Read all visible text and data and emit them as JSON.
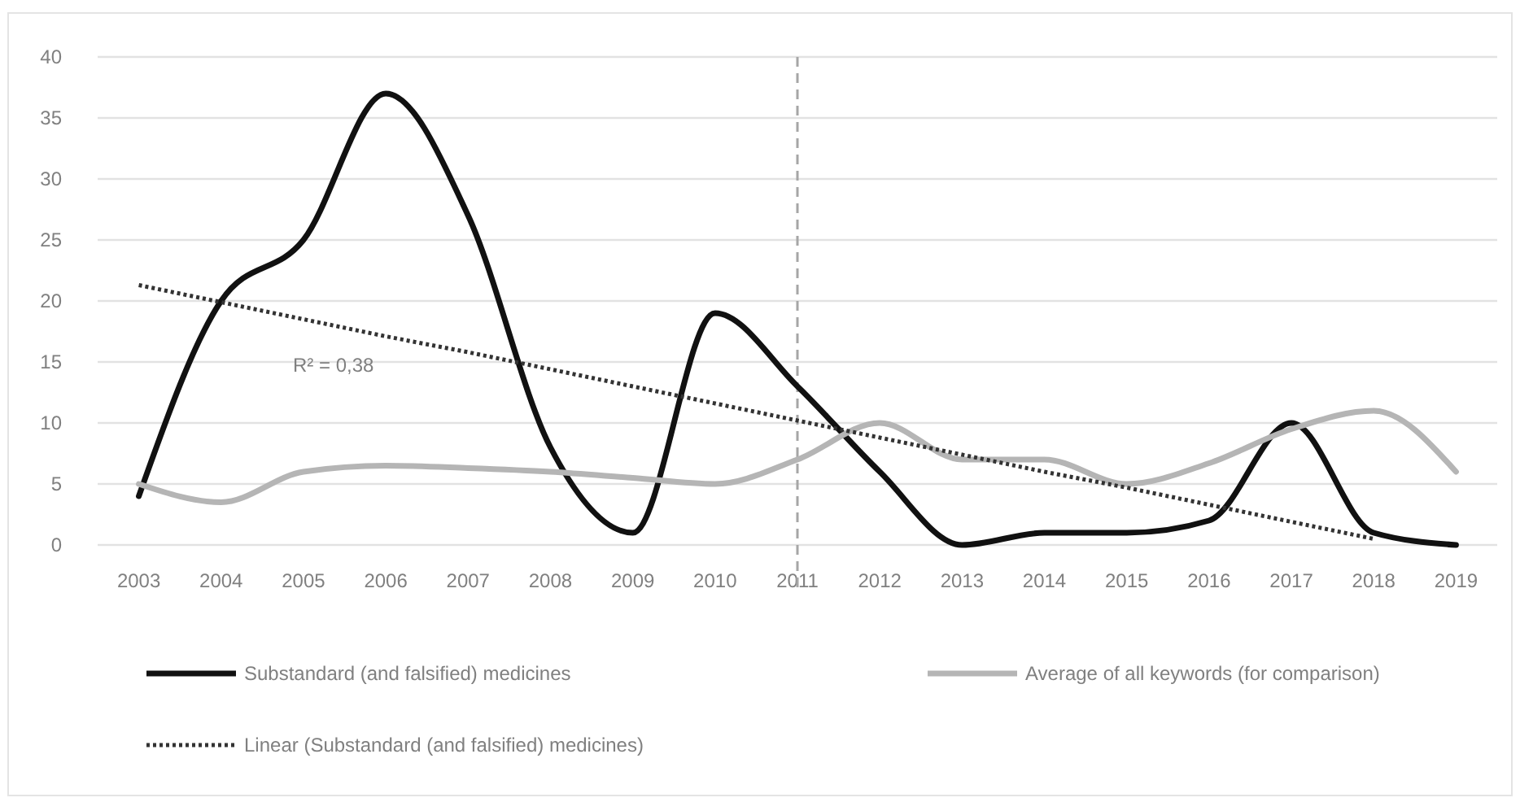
{
  "chart_data": {
    "type": "line",
    "categories": [
      "2003",
      "2004",
      "2005",
      "2006",
      "2007",
      "2008",
      "2009",
      "2010",
      "2011",
      "2012",
      "2013",
      "2014",
      "2015",
      "2016",
      "2017",
      "2018",
      "2019"
    ],
    "series": [
      {
        "name": "Substandard (and falsified) medicines",
        "color": "#111111",
        "values": [
          4,
          20,
          25,
          37,
          27,
          8,
          1,
          19,
          13,
          6,
          0,
          1,
          1,
          2,
          10,
          1,
          0
        ]
      },
      {
        "name": "Average of all keywords (for comparison)",
        "color": "#b5b5b5",
        "values": [
          5,
          3.5,
          6,
          6.5,
          6.3,
          6,
          5.5,
          5,
          7,
          10,
          7,
          7,
          5,
          6.7,
          9.5,
          11,
          6
        ]
      },
      {
        "name": "Linear (Substandard (and falsified) medicines)",
        "type": "line",
        "color": "#333333",
        "line_style": "dotted",
        "values": [
          21.3,
          19.9,
          18.5,
          17.1,
          15.8,
          14.4,
          13.0,
          11.6,
          10.2,
          8.8,
          7.4,
          6.0,
          4.7,
          3.3,
          1.9,
          0.5,
          null
        ]
      }
    ],
    "ylim": [
      0,
      40
    ],
    "yticks": [
      0,
      5,
      10,
      15,
      20,
      25,
      30,
      35,
      40
    ],
    "grid": "y",
    "legend": "bottom",
    "marker": "none",
    "line_style": "solid",
    "ref_lines": [
      {
        "axis": "x",
        "value": "2011",
        "color": "#a6a6a6",
        "line_style": "dashed"
      }
    ],
    "annotations": [
      "R² = 0,38"
    ]
  }
}
